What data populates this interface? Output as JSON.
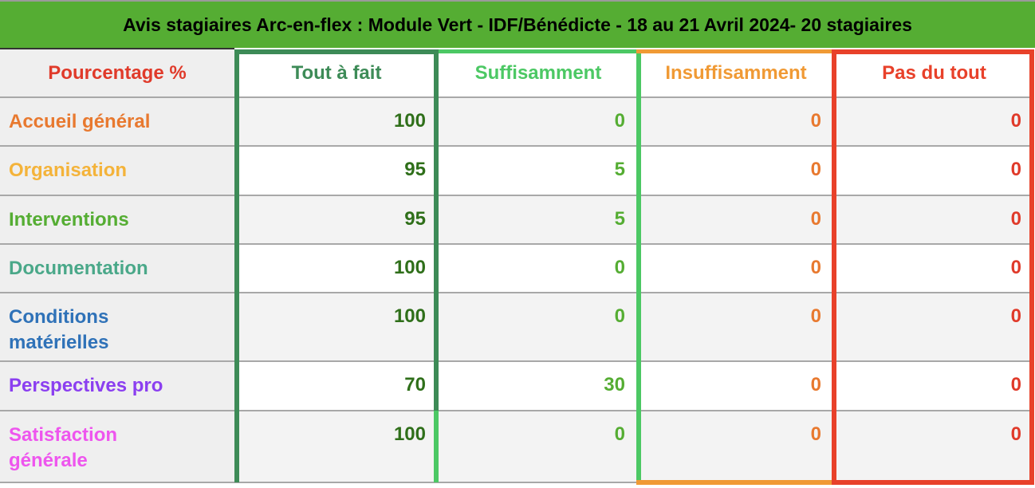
{
  "title": "Avis stagiaires Arc-en-flex : Module Vert - IDF/Bénédicte - 18 au 21 Avril 2024- 20 stagiaires",
  "colors": {
    "title_bg": "#55ad33",
    "tout": "#3d8b57",
    "suff": "#4cc864",
    "insuff": "#f09a35",
    "pas": "#e8412a"
  },
  "header": {
    "label": "Pourcentage %",
    "columns": [
      "Tout à fait",
      "Suffisamment",
      "Insuffisamment",
      "Pas du tout"
    ]
  },
  "rows": [
    {
      "label": "Accueil général",
      "color": "#e8792f",
      "values": [
        "100",
        "0",
        "0",
        "0"
      ]
    },
    {
      "label": "Organisation",
      "color": "#f4b33a",
      "values": [
        "95",
        "5",
        "0",
        "0"
      ]
    },
    {
      "label": "Interventions",
      "color": "#55ad33",
      "values": [
        "95",
        "5",
        "0",
        "0"
      ]
    },
    {
      "label": "Documentation",
      "color": "#4aa889",
      "values": [
        "100",
        "0",
        "0",
        "0"
      ]
    },
    {
      "label": "Conditions matérielles",
      "color": "#2f72b8",
      "values": [
        "100",
        "0",
        "0",
        "0"
      ]
    },
    {
      "label": "Perspectives pro",
      "color": "#8b3ff0",
      "values": [
        "70",
        "30",
        "0",
        "0"
      ]
    },
    {
      "label": "Satisfaction générale",
      "color": "#ee55ee",
      "values": [
        "100",
        "0",
        "0",
        "0"
      ]
    }
  ]
}
